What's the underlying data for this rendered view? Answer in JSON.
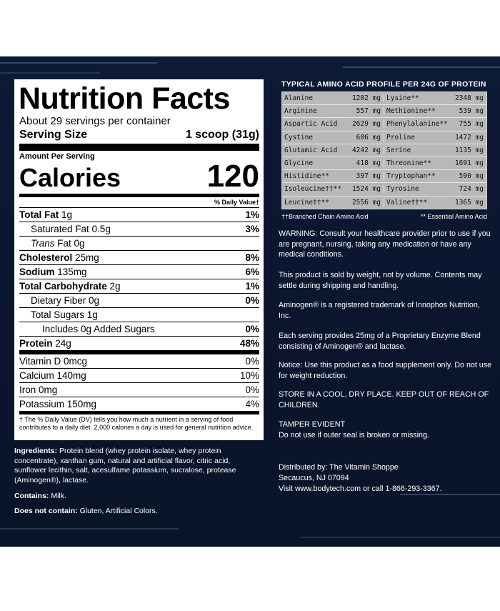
{
  "nutrition": {
    "title": "Nutrition Facts",
    "servings_per_container": "About 29 servings per container",
    "serving_size_label": "Serving Size",
    "serving_size_value": "1 scoop (31g)",
    "amount_per_serving": "Amount Per Serving",
    "calories_label": "Calories",
    "calories_value": "120",
    "daily_value_header": "% Daily Value†",
    "rows": [
      {
        "name": "Total Fat",
        "amount": "1g",
        "dv": "1%"
      },
      {
        "name": "Saturated Fat 0.5g",
        "amount": "",
        "dv": "3%"
      },
      {
        "name": "Trans",
        "amount": " Fat 0g",
        "dv": ""
      },
      {
        "name": "Cholesterol",
        "amount": "25mg",
        "dv": "8%"
      },
      {
        "name": "Sodium",
        "amount": "135mg",
        "dv": "6%"
      },
      {
        "name": "Total Carbohydrate",
        "amount": "2g",
        "dv": "1%"
      },
      {
        "name": "Dietary Fiber 0g",
        "amount": "",
        "dv": "0%"
      },
      {
        "name": "Total Sugars 1g",
        "amount": "",
        "dv": ""
      },
      {
        "name": "Includes 0g Added Sugars",
        "amount": "",
        "dv": "0%"
      },
      {
        "name": "Protein",
        "amount": "24g",
        "dv": "48%"
      }
    ],
    "vitamins": [
      {
        "name": "Vitamin D 0mcg",
        "dv": "0%"
      },
      {
        "name": "Calcium 140mg",
        "dv": "10%"
      },
      {
        "name": "Iron 0mg",
        "dv": "0%"
      },
      {
        "name": "Potassium 150mg",
        "dv": "4%"
      }
    ],
    "footnote": "† The % Daily Value (DV) tells you how much a nutrient in a serving of food contributes to a daily diet. 2,000 calories a day is used for general nutrition advice."
  },
  "ingredients": {
    "label": "Ingredients:",
    "text": " Protein blend (whey protein isolate, whey protein concentrate), xanthan gum, natural and artificial flavor, citric acid, sunflower lecithin, salt, acesulfame potassium, sucralose, protease (Aminogen®), lactase.",
    "contains_label": "Contains:",
    "contains_text": " Milk.",
    "not_contain_label": "Does not contain:",
    "not_contain_text": " Gluten, Artificial Colors."
  },
  "amino": {
    "title": "TYPICAL AMINO ACID PROFILE PER 24G OF PROTEIN",
    "rows": [
      [
        {
          "name": "Alanine",
          "value": "1202 mg"
        },
        {
          "name": "Lysine**",
          "value": "2348 mg"
        }
      ],
      [
        {
          "name": "Arginine",
          "value": "557 mg"
        },
        {
          "name": "Methionine**",
          "value": "539 mg"
        }
      ],
      [
        {
          "name": "Aspartic Acid",
          "value": "2629 mg"
        },
        {
          "name": "Phenylalanine**",
          "value": "755 mg"
        }
      ],
      [
        {
          "name": "Cystine",
          "value": "606 mg"
        },
        {
          "name": "Proline",
          "value": "1472 mg"
        }
      ],
      [
        {
          "name": "Glutamic Acid",
          "value": "4242 mg"
        },
        {
          "name": "Serine",
          "value": "1135 mg"
        }
      ],
      [
        {
          "name": "Glycine",
          "value": "418 mg"
        },
        {
          "name": "Threonine**",
          "value": "1691 mg"
        }
      ],
      [
        {
          "name": "Histidine**",
          "value": "397 mg"
        },
        {
          "name": "Tryptophan**",
          "value": "590 mg"
        }
      ],
      [
        {
          "name": "Isoleucine††**",
          "value": "1524 mg"
        },
        {
          "name": "Tyrosine",
          "value": "724 mg"
        }
      ],
      [
        {
          "name": "Leucine††**",
          "value": "2556 mg"
        },
        {
          "name": "Valine††**",
          "value": "1365 mg"
        }
      ]
    ],
    "legend_bcaa": "††Branched Chain Amino Acid",
    "legend_essential": "** Essential Amino Acid"
  },
  "notices": {
    "warning": "WARNING: Consult your healthcare provider prior to use if you are pregnant, nursing, taking any medication or have any medical conditions.",
    "weight": "This product is sold by weight, not by volume. Contents may settle during shipping and handling.",
    "trademark": "Aminogen® is a registered trademark of Innophos Nutrition, Inc.",
    "enzyme": "Each serving provides 25mg of a Proprietary Enzyme Blend consisting of Aminogen® and lactase.",
    "notice": "Notice: Use this product as a food supplement only. Do not use for weight reduction.",
    "store": "STORE IN A COOL, DRY PLACE. KEEP OUT OF REACH OF CHILDREN.",
    "tamper_title": "TAMPER EVIDENT",
    "tamper_text": "Do not use if outer seal is broken or missing.",
    "distributor_line1": "Distributed by: The Vitamin Shoppe",
    "distributor_line2": "Secaucus, NJ 07094",
    "distributor_line3": "Visit www.bodytech.com or call 1-866-293-3367."
  },
  "colors": {
    "panel_background": "#0c1832",
    "label_background": "#ffffff",
    "table_background": "#b8b8b8"
  }
}
